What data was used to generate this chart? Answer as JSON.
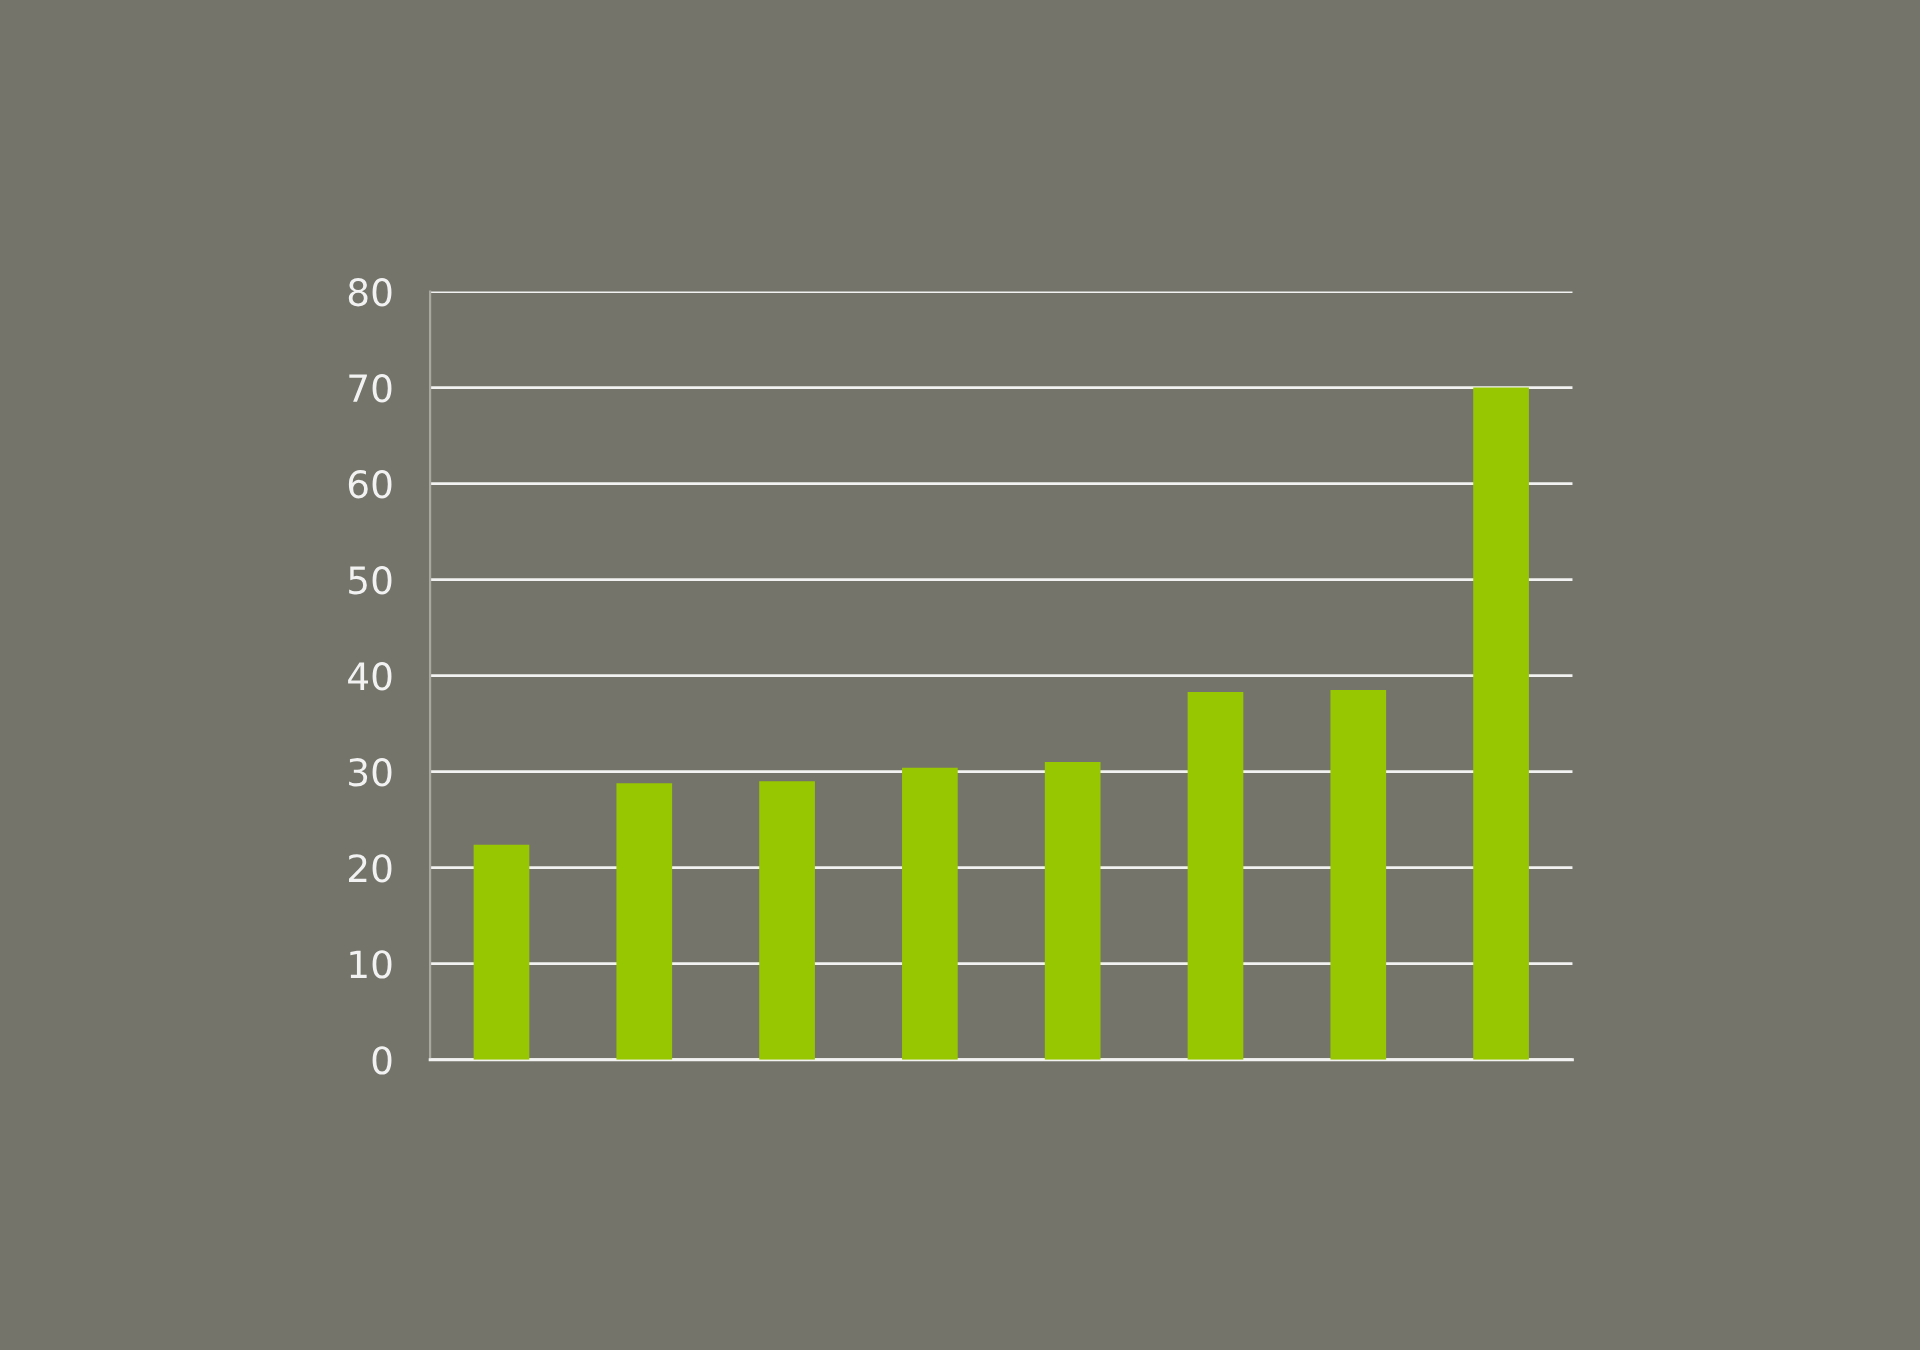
{
  "chart_data": {
    "type": "bar",
    "categories": [
      null,
      null,
      null,
      null,
      null,
      null,
      null,
      null
    ],
    "values": [
      22.4,
      28.8,
      29.0,
      30.4,
      31.0,
      38.3,
      38.5,
      70.0
    ],
    "color": "#97c700",
    "ylim": [
      0,
      80
    ],
    "yticks": [
      0,
      10,
      20,
      30,
      40,
      50,
      60,
      70,
      80
    ],
    "grid": "y"
  }
}
